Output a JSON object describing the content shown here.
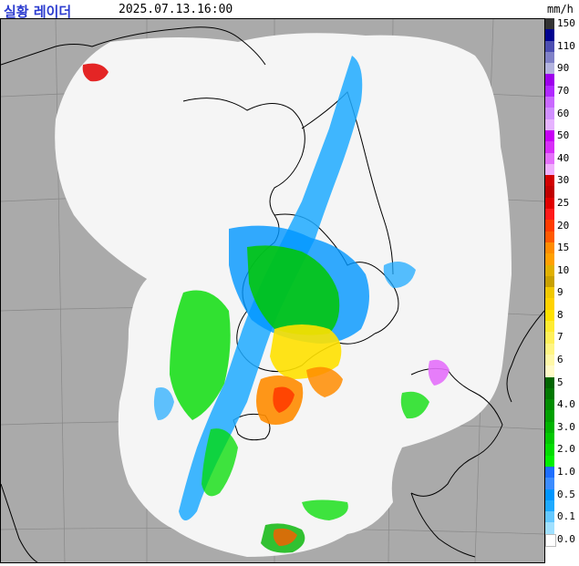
{
  "header": {
    "title": "실황 레이더",
    "timestamp": "2025.07.13.16:00",
    "unit": "mm/h"
  },
  "legend": [
    {
      "label": "150",
      "color": "#333333"
    },
    {
      "label": "",
      "color": "#000390"
    },
    {
      "label": "110",
      "color": "#4c4eb1"
    },
    {
      "label": "",
      "color": "#8081c7"
    },
    {
      "label": "90",
      "color": "#b3b4de"
    },
    {
      "label": "",
      "color": "#9e00ec"
    },
    {
      "label": "70",
      "color": "#b029ff"
    },
    {
      "label": "",
      "color": "#c969ff"
    },
    {
      "label": "60",
      "color": "#d08fff"
    },
    {
      "label": "",
      "color": "#e6b3ff"
    },
    {
      "label": "50",
      "color": "#c800f5"
    },
    {
      "label": "",
      "color": "#d72ef8"
    },
    {
      "label": "40",
      "color": "#e470fb"
    },
    {
      "label": "",
      "color": "#f0b0fd"
    },
    {
      "label": "30",
      "color": "#d20000"
    },
    {
      "label": "",
      "color": "#c00000"
    },
    {
      "label": "25",
      "color": "#e00000"
    },
    {
      "label": "",
      "color": "#ff1a1a"
    },
    {
      "label": "20",
      "color": "#ff3c00"
    },
    {
      "label": "",
      "color": "#ff5a00"
    },
    {
      "label": "15",
      "color": "#ff8c00"
    },
    {
      "label": "",
      "color": "#ffa000"
    },
    {
      "label": "10",
      "color": "#e0b000"
    },
    {
      "label": "",
      "color": "#c8a000"
    },
    {
      "label": "9",
      "color": "#f0c800"
    },
    {
      "label": "",
      "color": "#ffd200"
    },
    {
      "label": "8",
      "color": "#ffe100"
    },
    {
      "label": "",
      "color": "#ffeb32"
    },
    {
      "label": "7",
      "color": "#fff05a"
    },
    {
      "label": "",
      "color": "#fff584"
    },
    {
      "label": "6",
      "color": "#fff8a8"
    },
    {
      "label": "",
      "color": "#fffac8"
    },
    {
      "label": "5",
      "color": "#006400"
    },
    {
      "label": "",
      "color": "#007800"
    },
    {
      "label": "4.0",
      "color": "#008c00"
    },
    {
      "label": "",
      "color": "#00a000"
    },
    {
      "label": "3.0",
      "color": "#00b400"
    },
    {
      "label": "",
      "color": "#00c800"
    },
    {
      "label": "2.0",
      "color": "#00dc00"
    },
    {
      "label": "",
      "color": "#00f000"
    },
    {
      "label": "1.0",
      "color": "#1e6eff"
    },
    {
      "label": "",
      "color": "#3c8cff"
    },
    {
      "label": "0.5",
      "color": "#0096ff"
    },
    {
      "label": "",
      "color": "#1eaaff"
    },
    {
      "label": "0.1",
      "color": "#64c8ff"
    },
    {
      "label": "",
      "color": "#a0e0ff"
    },
    {
      "label": "0.0",
      "color": "#ffffff"
    }
  ]
}
